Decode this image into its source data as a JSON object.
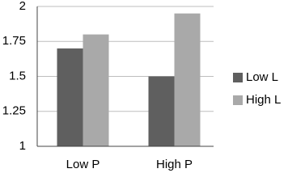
{
  "chart_data": {
    "type": "bar",
    "categories": [
      "Low P",
      "High P"
    ],
    "series": [
      {
        "name": "Low L",
        "color": "#5f5f5f",
        "values": [
          1.7,
          1.5
        ]
      },
      {
        "name": "High L",
        "color": "#a9a9a9",
        "values": [
          1.8,
          1.95
        ]
      }
    ],
    "ylim": [
      1,
      2
    ],
    "yticks": [
      1,
      1.25,
      1.5,
      1.75,
      2
    ],
    "grid": true,
    "legend": "right"
  }
}
